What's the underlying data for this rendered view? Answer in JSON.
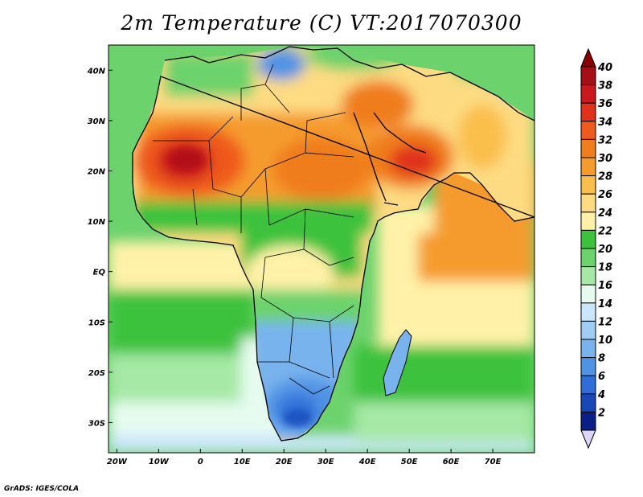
{
  "title": "2m Temperature (C) VT:2017070300",
  "credit": "GrADS: IGES/COLA",
  "map": {
    "lon_range": [
      -22,
      80
    ],
    "lat_range": [
      -36,
      45
    ],
    "lon_ticks": [
      {
        "value": -20,
        "label": "20W"
      },
      {
        "value": -10,
        "label": "10W"
      },
      {
        "value": 0,
        "label": "0"
      },
      {
        "value": 10,
        "label": "10E"
      },
      {
        "value": 20,
        "label": "20E"
      },
      {
        "value": 30,
        "label": "30E"
      },
      {
        "value": 40,
        "label": "40E"
      },
      {
        "value": 50,
        "label": "50E"
      },
      {
        "value": 60,
        "label": "60E"
      },
      {
        "value": 70,
        "label": "70E"
      }
    ],
    "lat_ticks": [
      {
        "value": 40,
        "label": "40N"
      },
      {
        "value": 30,
        "label": "30N"
      },
      {
        "value": 20,
        "label": "20N"
      },
      {
        "value": 10,
        "label": "10N"
      },
      {
        "value": 0,
        "label": "EQ"
      },
      {
        "value": -10,
        "label": "10S"
      },
      {
        "value": -20,
        "label": "20S"
      },
      {
        "value": -30,
        "label": "30S"
      }
    ]
  },
  "colorbar": {
    "labels": [
      "40",
      "38",
      "36",
      "34",
      "32",
      "30",
      "28",
      "26",
      "24",
      "22",
      "20",
      "18",
      "16",
      "14",
      "12",
      "10",
      "8",
      "6",
      "4",
      "2"
    ],
    "colors": [
      "#a50f15",
      "#cb181d",
      "#e0311a",
      "#ef5a1f",
      "#f07d1e",
      "#f59b2e",
      "#fabe4c",
      "#fddb82",
      "#fff2a8",
      "#3cc23c",
      "#6cd26c",
      "#a6e8a6",
      "#e6fbef",
      "#cbe6fa",
      "#a0cdf4",
      "#78b3ee",
      "#4f93e4",
      "#2f6ed8",
      "#1847b8",
      "#0a1f85"
    ],
    "top_color": "#8b0000",
    "bottom_color": "#dcd6f7"
  }
}
